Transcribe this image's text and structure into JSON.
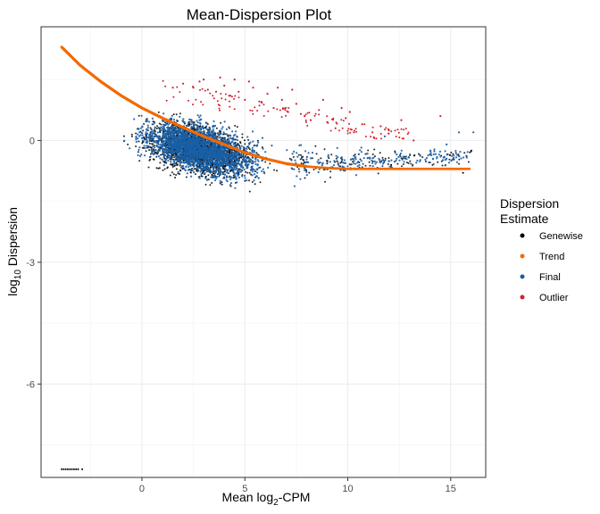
{
  "chart_data": {
    "type": "scatter",
    "title": "Mean-Dispersion Plot",
    "xlabel": {
      "base": "Mean log",
      "sub": "2",
      "suffix": "-CPM"
    },
    "ylabel": {
      "base": "log",
      "sub": "10",
      "suffix": " Dispersion"
    },
    "xlim": [
      -4.9,
      16.7
    ],
    "ylim": [
      -8.3,
      2.8
    ],
    "x_ticks": [
      0,
      5,
      10,
      15
    ],
    "x_tick_labels": [
      "0",
      "5",
      "10",
      "15"
    ],
    "y_ticks": [
      0,
      -3,
      -6
    ],
    "y_tick_labels": [
      "0",
      "-3",
      "-6"
    ],
    "grid": true,
    "legend": {
      "position": "right",
      "title_lines": [
        "Dispersion",
        "Estimate"
      ],
      "entries": [
        {
          "name": "Genewise",
          "color": "#000000"
        },
        {
          "name": "Trend",
          "color": "#f26a00"
        },
        {
          "name": "Final",
          "color": "#1a5fa6"
        },
        {
          "name": "Outlier",
          "color": "#d0222e"
        }
      ]
    },
    "series": [
      {
        "name": "Genewise",
        "color": "#000000",
        "description_points": "dense cloud with the same extent as Final; upper edge near +1.1, lower edge near -1.7",
        "envelope": [
          [
            -3.9,
            -0.8,
            0.9
          ],
          [
            -2,
            -0.9,
            1.1
          ],
          [
            0,
            -1.1,
            1.1
          ],
          [
            2,
            -1.4,
            1.1
          ],
          [
            4,
            -1.5,
            0.8
          ],
          [
            6,
            -1.6,
            0.5
          ],
          [
            7.5,
            -1.6,
            0.3
          ],
          [
            9,
            -1.3,
            0.1
          ],
          [
            11,
            -1.1,
            0.0
          ],
          [
            13,
            -0.9,
            0.0
          ],
          [
            16,
            -0.8,
            0.0
          ]
        ],
        "isolated_points": [
          [
            -3.9,
            -8.1
          ],
          [
            -3.8,
            -8.1
          ],
          [
            -3.7,
            -8.1
          ],
          [
            -3.6,
            -8.1
          ],
          [
            -3.5,
            -8.1
          ],
          [
            -3.4,
            -8.1
          ],
          [
            -3.3,
            -8.1
          ],
          [
            -3.2,
            -8.1
          ],
          [
            -3.1,
            -8.1
          ],
          [
            -2.9,
            -8.1
          ],
          [
            14.6,
            -0.7
          ],
          [
            15.6,
            -0.8
          ],
          [
            16,
            -0.25
          ]
        ]
      },
      {
        "name": "Trend",
        "color": "#f26a00",
        "x": [
          -3.9,
          -3,
          -2,
          -1,
          0,
          1,
          2,
          3,
          4,
          5,
          6,
          7,
          8,
          9,
          10,
          11,
          12,
          13,
          14,
          15,
          16
        ],
        "y": [
          2.3,
          1.85,
          1.45,
          1.1,
          0.8,
          0.55,
          0.32,
          0.1,
          -0.1,
          -0.3,
          -0.45,
          -0.57,
          -0.64,
          -0.68,
          -0.7,
          -0.7,
          -0.7,
          -0.7,
          -0.7,
          -0.7,
          -0.7
        ]
      },
      {
        "name": "Final",
        "color": "#1a5fa6",
        "envelope": [
          [
            -3.9,
            -0.6,
            1.0
          ],
          [
            -2,
            -0.7,
            1.1
          ],
          [
            0,
            -0.9,
            1.05
          ],
          [
            2,
            -1.2,
            1.0
          ],
          [
            4,
            -1.45,
            0.75
          ],
          [
            6,
            -1.55,
            0.45
          ],
          [
            7.5,
            -1.5,
            0.3
          ],
          [
            9,
            -1.25,
            0.15
          ],
          [
            11,
            -1.0,
            0.05
          ],
          [
            13,
            -0.9,
            0.05
          ],
          [
            16,
            -0.75,
            0.05
          ]
        ],
        "isolated_points": [
          [
            14.8,
            -0.1
          ],
          [
            15.4,
            0.2
          ],
          [
            16.1,
            0.2
          ],
          [
            12.3,
            -0.3
          ],
          [
            11.8,
            0.1
          ]
        ]
      },
      {
        "name": "Outlier",
        "color": "#d0222e",
        "points": [
          [
            1.5,
            1.3
          ],
          [
            2.0,
            1.4
          ],
          [
            2.5,
            1.3
          ],
          [
            3.0,
            1.5
          ],
          [
            3.2,
            1.25
          ],
          [
            3.6,
            1.2
          ],
          [
            4.0,
            1.35
          ],
          [
            4.3,
            1.1
          ],
          [
            4.7,
            1.2
          ],
          [
            5.0,
            1.0
          ],
          [
            5.4,
            1.3
          ],
          [
            5.8,
            0.95
          ],
          [
            6.1,
            1.15
          ],
          [
            6.4,
            0.8
          ],
          [
            6.8,
            1.0
          ],
          [
            7.1,
            0.7
          ],
          [
            7.5,
            0.9
          ],
          [
            7.9,
            0.6
          ],
          [
            8.2,
            0.5
          ],
          [
            8.6,
            0.75
          ],
          [
            9.0,
            0.45
          ],
          [
            9.4,
            0.3
          ],
          [
            9.9,
            0.55
          ],
          [
            10.3,
            0.2
          ],
          [
            10.7,
            0.4
          ],
          [
            11.2,
            0.2
          ],
          [
            11.6,
            0.35
          ],
          [
            12.0,
            0.25
          ],
          [
            12.6,
            0.5
          ],
          [
            13.2,
            0.0
          ],
          [
            14.5,
            0.6
          ],
          [
            6.6,
            1.3
          ],
          [
            7.3,
            1.25
          ],
          [
            8.8,
            1.0
          ],
          [
            5.2,
            1.45
          ],
          [
            9.7,
            0.8
          ],
          [
            4.5,
            1.5
          ],
          [
            3.8,
            1.55
          ],
          [
            2.8,
            1.45
          ],
          [
            10.1,
            0.7
          ]
        ]
      }
    ]
  }
}
